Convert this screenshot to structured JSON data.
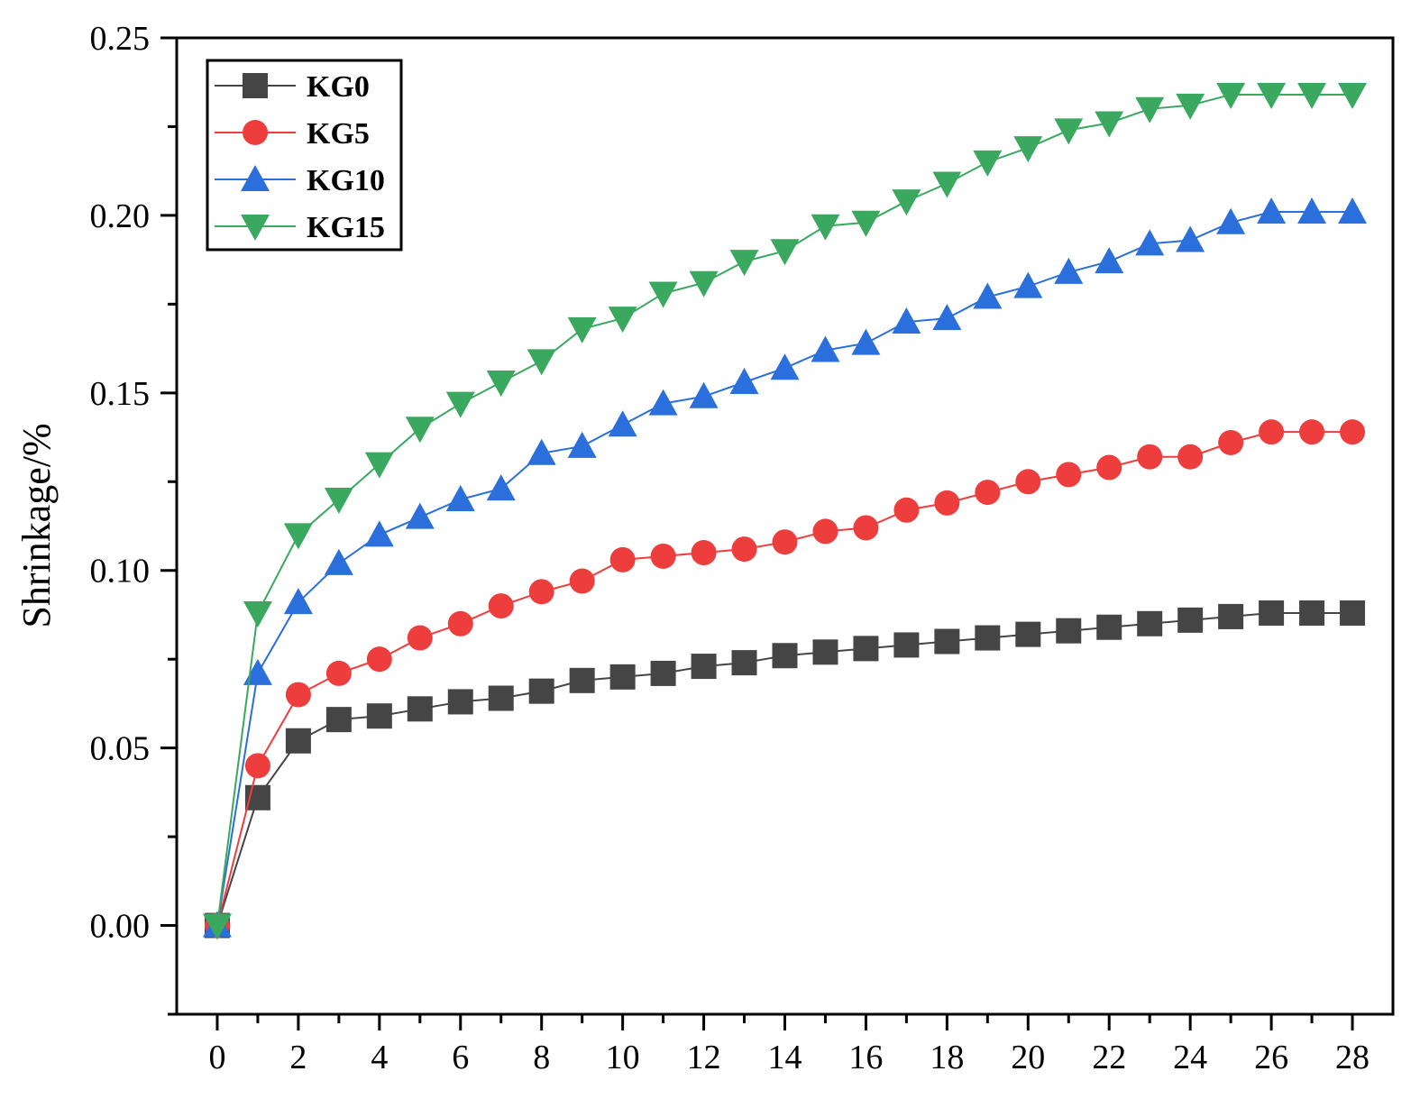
{
  "chart_data": {
    "type": "line",
    "title": "",
    "xlabel": "",
    "ylabel": "Shrinkage/%",
    "xlim": [
      -1,
      29
    ],
    "ylim": [
      -0.025,
      0.25
    ],
    "xticks": [
      "0",
      "2",
      "4",
      "6",
      "8",
      "10",
      "12",
      "14",
      "16",
      "18",
      "20",
      "22",
      "24",
      "26",
      "28"
    ],
    "yticks": [
      "0.00",
      "0.05",
      "0.10",
      "0.15",
      "0.20",
      "0.25"
    ],
    "x": [
      0,
      1,
      2,
      3,
      4,
      5,
      6,
      7,
      8,
      9,
      10,
      11,
      12,
      13,
      14,
      15,
      16,
      17,
      18,
      19,
      20,
      21,
      22,
      23,
      24,
      25,
      26,
      27,
      28
    ],
    "legend_position": "top-left",
    "series": [
      {
        "name": "KG0",
        "color": "#454545",
        "marker": "square",
        "values": [
          0,
          0.036,
          0.052,
          0.058,
          0.059,
          0.061,
          0.063,
          0.064,
          0.066,
          0.069,
          0.07,
          0.071,
          0.073,
          0.074,
          0.076,
          0.077,
          0.078,
          0.079,
          0.08,
          0.081,
          0.082,
          0.083,
          0.084,
          0.085,
          0.086,
          0.087,
          0.088,
          0.088,
          0.088
        ]
      },
      {
        "name": "KG5",
        "color": "#ee3d3d",
        "marker": "circle",
        "values": [
          0,
          0.045,
          0.065,
          0.071,
          0.075,
          0.081,
          0.085,
          0.09,
          0.094,
          0.097,
          0.103,
          0.104,
          0.105,
          0.106,
          0.108,
          0.111,
          0.112,
          0.117,
          0.119,
          0.122,
          0.125,
          0.127,
          0.129,
          0.132,
          0.132,
          0.136,
          0.139,
          0.139,
          0.139
        ]
      },
      {
        "name": "KG10",
        "color": "#2a6fdb",
        "marker": "triangle-up",
        "values": [
          0,
          0.071,
          0.091,
          0.102,
          0.11,
          0.115,
          0.12,
          0.123,
          0.133,
          0.135,
          0.141,
          0.147,
          0.149,
          0.153,
          0.157,
          0.162,
          0.164,
          0.17,
          0.171,
          0.177,
          0.18,
          0.184,
          0.187,
          0.192,
          0.193,
          0.198,
          0.201,
          0.201,
          0.201
        ]
      },
      {
        "name": "KG15",
        "color": "#3aa85f",
        "marker": "triangle-down",
        "values": [
          0,
          0.088,
          0.11,
          0.12,
          0.13,
          0.14,
          0.147,
          0.153,
          0.159,
          0.168,
          0.171,
          0.178,
          0.181,
          0.187,
          0.19,
          0.197,
          0.198,
          0.204,
          0.209,
          0.215,
          0.219,
          0.224,
          0.226,
          0.23,
          0.231,
          0.234,
          0.234,
          0.234,
          0.234
        ]
      }
    ]
  }
}
